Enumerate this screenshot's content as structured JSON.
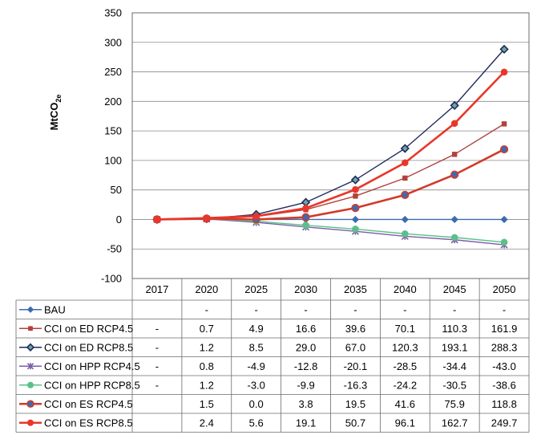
{
  "chart_data": {
    "type": "line",
    "title": "",
    "xlabel": "",
    "ylabel": "MtCO",
    "ylabel_sub": "2e",
    "ylim": [
      -100,
      350
    ],
    "yticks": [
      -100,
      -50,
      0,
      50,
      100,
      150,
      200,
      250,
      300,
      350
    ],
    "grid": true,
    "legend": "table-left",
    "categories": [
      "2017",
      "2020",
      "2025",
      "2030",
      "2035",
      "2040",
      "2045",
      "2050"
    ],
    "series": [
      {
        "name": "BAU",
        "color": "#3c6bb0",
        "marker": "diamond",
        "values": [
          0,
          0,
          0,
          0,
          0,
          0,
          0,
          0
        ],
        "labels": [
          "",
          "-",
          "-",
          "-",
          "-",
          "-",
          "-",
          "-"
        ]
      },
      {
        "name": "CCI on ED RCP4.5",
        "color": "#b1413d",
        "marker": "square",
        "values": [
          0,
          0.7,
          4.9,
          16.6,
          39.6,
          70.1,
          110.3,
          161.9
        ],
        "labels": [
          "-",
          "0.7",
          "4.9",
          "16.6",
          "39.6",
          "70.1",
          "110.3",
          "161.9"
        ]
      },
      {
        "name": "CCI on ED RCP8.5",
        "color": "#1f2a5c",
        "marker": "diamond-open",
        "values": [
          0,
          1.2,
          8.5,
          29.0,
          67.0,
          120.3,
          193.1,
          288.3
        ],
        "labels": [
          "-",
          "1.2",
          "8.5",
          "29.0",
          "67.0",
          "120.3",
          "193.1",
          "288.3"
        ]
      },
      {
        "name": "CCI on HPP RCP4.5",
        "color": "#7b5fa8",
        "marker": "star",
        "values": [
          0,
          0.8,
          -4.9,
          -12.8,
          -20.1,
          -28.5,
          -34.4,
          -43.0
        ],
        "labels": [
          "-",
          "0.8",
          "-4.9",
          "-12.8",
          "-20.1",
          "-28.5",
          "-34.4",
          "-43.0"
        ]
      },
      {
        "name": "CCI on HPP RCP8.5",
        "color": "#5cbf8a",
        "marker": "circle",
        "values": [
          0,
          1.2,
          -3.0,
          -9.9,
          -16.3,
          -24.2,
          -30.5,
          -38.6
        ],
        "labels": [
          "-",
          "1.2",
          "-3.0",
          "-9.9",
          "-16.3",
          "-24.2",
          "-30.5",
          "-38.6"
        ]
      },
      {
        "name": "CCI on ES RCP4.5",
        "color": "#d23a2a",
        "marker": "circle-blue",
        "marker_fill": "#3c6bb0",
        "values": [
          0,
          1.5,
          0.0,
          3.8,
          19.5,
          41.6,
          75.9,
          118.8
        ],
        "labels": [
          "",
          "1.5",
          "0.0",
          "3.8",
          "19.5",
          "41.6",
          "75.9",
          "118.8"
        ]
      },
      {
        "name": "CCI on ES RCP8.5",
        "color": "#e8372a",
        "marker": "circle",
        "values": [
          0,
          2.4,
          5.6,
          19.1,
          50.7,
          96.1,
          162.7,
          249.7
        ],
        "labels": [
          "",
          "2.4",
          "5.6",
          "19.1",
          "50.7",
          "96.1",
          "162.7",
          "249.7"
        ]
      }
    ]
  }
}
